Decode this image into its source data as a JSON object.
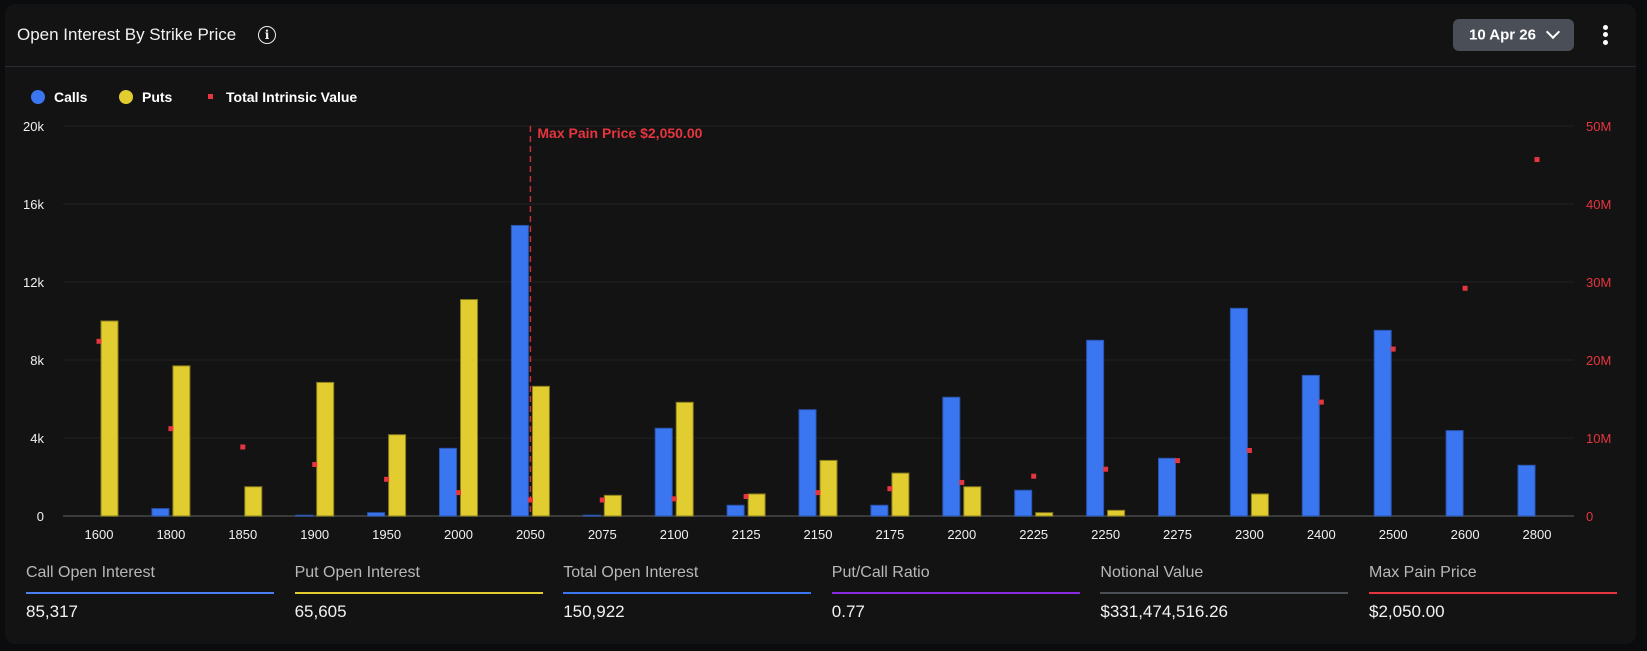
{
  "header": {
    "title": "Open Interest By Strike Price",
    "info_icon": "info-icon",
    "date_select": "10 Apr 26",
    "menu_icon": "kebab-menu-icon"
  },
  "colors": {
    "calls": "#3a76f0",
    "puts": "#e2cd30",
    "intrinsic": "#e5353f",
    "max_pain": "#e5353f"
  },
  "chart_data": {
    "type": "bar",
    "categories": [
      "1600",
      "1800",
      "1850",
      "1900",
      "1950",
      "2000",
      "2050",
      "2075",
      "2100",
      "2125",
      "2150",
      "2175",
      "2200",
      "2225",
      "2250",
      "2275",
      "2300",
      "2400",
      "2500",
      "2600",
      "2800"
    ],
    "series": [
      {
        "name": "Calls",
        "axis": "left",
        "type": "bar",
        "values": [
          0,
          380,
          0,
          40,
          170,
          3470,
          14900,
          40,
          4500,
          550,
          5450,
          550,
          6090,
          1320,
          9010,
          2960,
          10650,
          7210,
          9520,
          4380,
          2600
        ]
      },
      {
        "name": "Puts",
        "axis": "left",
        "type": "bar",
        "values": [
          10000,
          7700,
          1500,
          6850,
          4170,
          11100,
          6650,
          1060,
          5830,
          1130,
          2850,
          2200,
          1500,
          170,
          290,
          0,
          1130,
          0,
          0,
          0,
          0
        ]
      },
      {
        "name": "Total Intrinsic Value",
        "axis": "right",
        "type": "scatter",
        "values": [
          22400000,
          11200000,
          8850000,
          6600000,
          4700000,
          3000000,
          2050000,
          2050000,
          2200000,
          2500000,
          3000000,
          3500000,
          4300000,
          5100000,
          6000000,
          7100000,
          8400000,
          14600000,
          21400000,
          29200000,
          45700000
        ]
      }
    ],
    "left_axis": {
      "ylim": [
        0,
        20000
      ],
      "ticks": [
        "0",
        "4k",
        "8k",
        "12k",
        "16k",
        "20k"
      ]
    },
    "right_axis": {
      "ylim": [
        0,
        50000000
      ],
      "ticks": [
        "0",
        "10M",
        "20M",
        "30M",
        "40M",
        "50M"
      ]
    },
    "annotation": {
      "label": "Max Pain Price $2,050.00",
      "category": "2050"
    },
    "grid": true,
    "legend": "top-left"
  },
  "stats": [
    {
      "label": "Call Open Interest",
      "value": "85,317",
      "color": "#4a7ff0"
    },
    {
      "label": "Put Open Interest",
      "value": "65,605",
      "color": "#e2cd30"
    },
    {
      "label": "Total Open Interest",
      "value": "150,922",
      "color": "#3a76f0"
    },
    {
      "label": "Put/Call Ratio",
      "value": "0.77",
      "color": "#8a2be2"
    },
    {
      "label": "Notional Value",
      "value": "$331,474,516.26",
      "color": "#4a4e57"
    },
    {
      "label": "Max Pain Price",
      "value": "$2,050.00",
      "color": "#e5353f"
    }
  ]
}
